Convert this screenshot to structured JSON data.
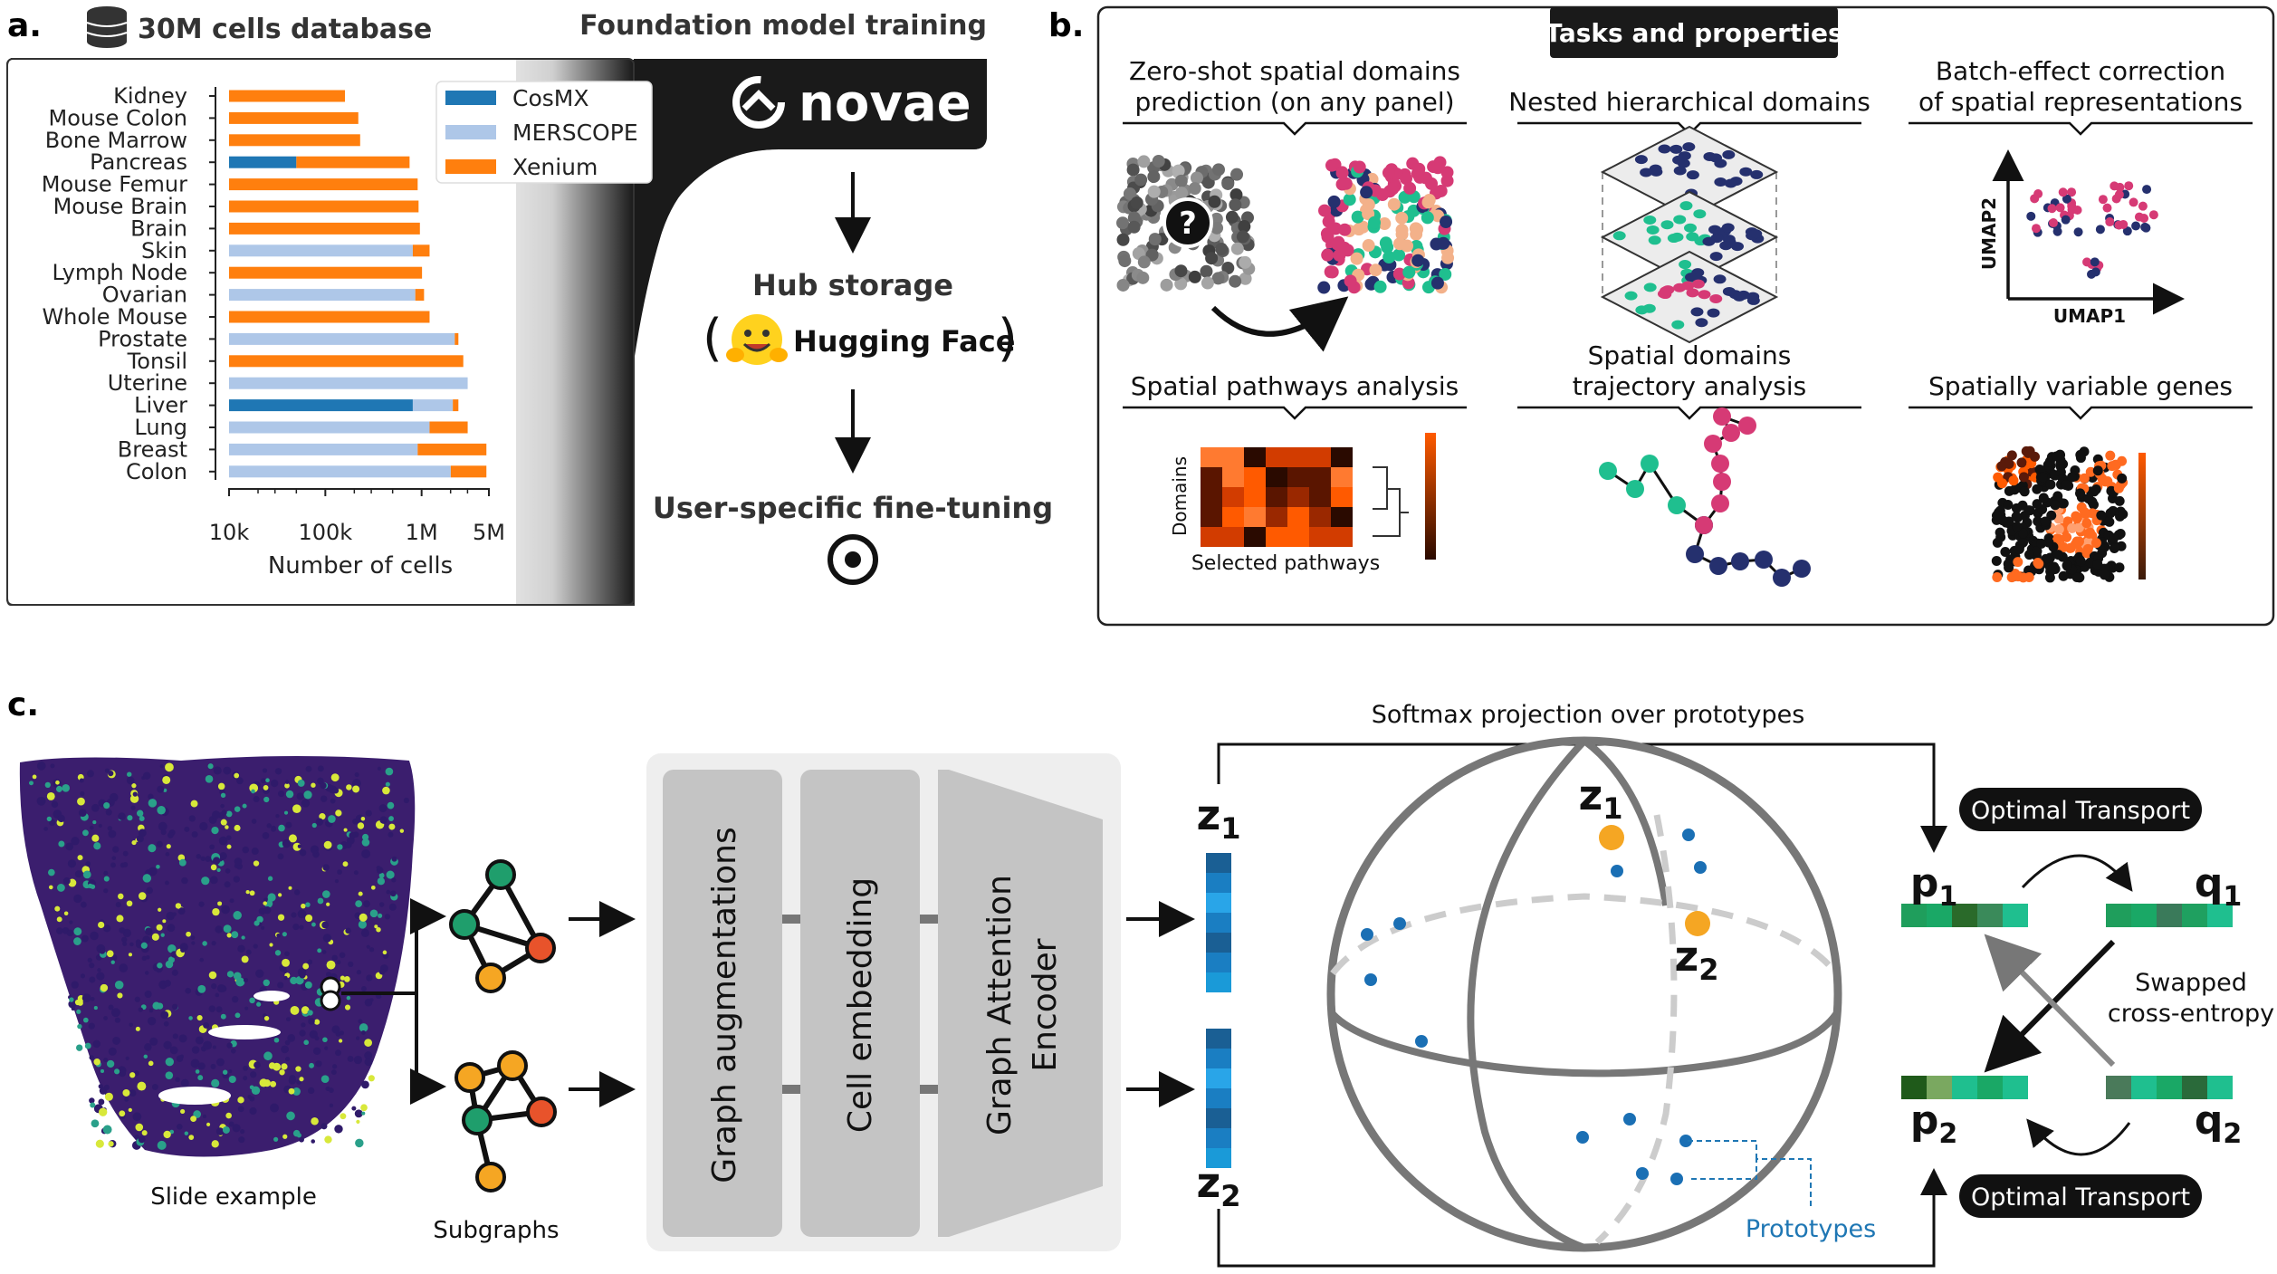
{
  "panel_a": {
    "label": "a.",
    "database_title": "30M cells database",
    "training_title": "Foundation model training",
    "brand": "novae",
    "hub_storage": "Hub storage",
    "hub_name": "Hugging Face",
    "fine_tuning": "User-specific fine-tuning",
    "chart_data": {
      "type": "bar",
      "stacked": true,
      "log_scale_x": true,
      "orientation": "horizontal",
      "xlabel": "Number of cells",
      "ylabel": "",
      "xlim": [
        10000,
        5000000
      ],
      "xticks": [
        10000,
        100000,
        1000000,
        5000000
      ],
      "xtick_labels": [
        "10k",
        "100k",
        "1M",
        "5M"
      ],
      "legend_position": "top-right",
      "categories": [
        "Kidney",
        "Mouse Colon",
        "Bone Marrow",
        "Pancreas",
        "Mouse Femur",
        "Mouse Brain",
        "Brain",
        "Skin",
        "Lymph Node",
        "Ovarian",
        "Whole Mouse",
        "Prostate",
        "Tonsil",
        "Uterine",
        "Liver",
        "Lung",
        "Breast",
        "Colon"
      ],
      "series": [
        {
          "name": "CosMX",
          "color": "#1f77b4",
          "values": [
            0,
            0,
            0,
            40000,
            0,
            0,
            0,
            0,
            0,
            0,
            0,
            0,
            0,
            0,
            800000,
            0,
            0,
            0
          ]
        },
        {
          "name": "MERSCOPE",
          "color": "#aec7e8",
          "values": [
            0,
            0,
            0,
            0,
            0,
            0,
            0,
            800000,
            0,
            850000,
            0,
            2200000,
            0,
            3000000,
            1300000,
            1200000,
            900000,
            2000000
          ]
        },
        {
          "name": "Xenium",
          "color": "#ff7f0e",
          "values": [
            150000,
            210000,
            220000,
            700000,
            900000,
            920000,
            950000,
            400000,
            1000000,
            200000,
            1200000,
            200000,
            2700000,
            0,
            300000,
            1800000,
            3800000,
            2700000
          ]
        }
      ]
    }
  },
  "panel_b": {
    "label": "b.",
    "header": "Tasks and properties",
    "tasks": [
      {
        "title_line1": "Zero-shot spatial domains",
        "title_line2": "prediction (on any panel)"
      },
      {
        "title_line1": "",
        "title_line2": "Nested hierarchical domains"
      },
      {
        "title_line1": "Batch-effect correction",
        "title_line2": "of spatial representations"
      },
      {
        "title_line1": "",
        "title_line2": "Spatial pathways analysis"
      },
      {
        "title_line1": "Spatial domains",
        "title_line2": "trajectory analysis"
      },
      {
        "title_line1": "",
        "title_line2": "Spatially variable genes"
      }
    ],
    "question_mark": "?",
    "umap_x": "UMAP1",
    "umap_y": "UMAP2",
    "heatmap_y": "Domains",
    "heatmap_x": "Selected pathways"
  },
  "panel_c": {
    "label": "c.",
    "slide_caption": "Slide example",
    "subgraphs_caption": "Subgraphs",
    "blocks": [
      "Graph augmentations",
      "Cell embedding",
      "Graph Attention",
      "Encoder"
    ],
    "z1_base": "z",
    "z1_sub": "1",
    "z2_base": "z",
    "z2_sub": "2",
    "softmax_title": "Softmax projection over prototypes",
    "prototypes": "Prototypes",
    "optimal_transport_top": "Optimal Transport",
    "optimal_transport_bottom": "Optimal Transport",
    "p1_base": "p",
    "p1_sub": "1",
    "q1_base": "q",
    "q1_sub": "1",
    "p2_base": "p",
    "p2_sub": "2",
    "q2_base": "q",
    "q2_sub": "2",
    "swapped_line1": "Swapped",
    "swapped_line2": "cross-entropy"
  }
}
